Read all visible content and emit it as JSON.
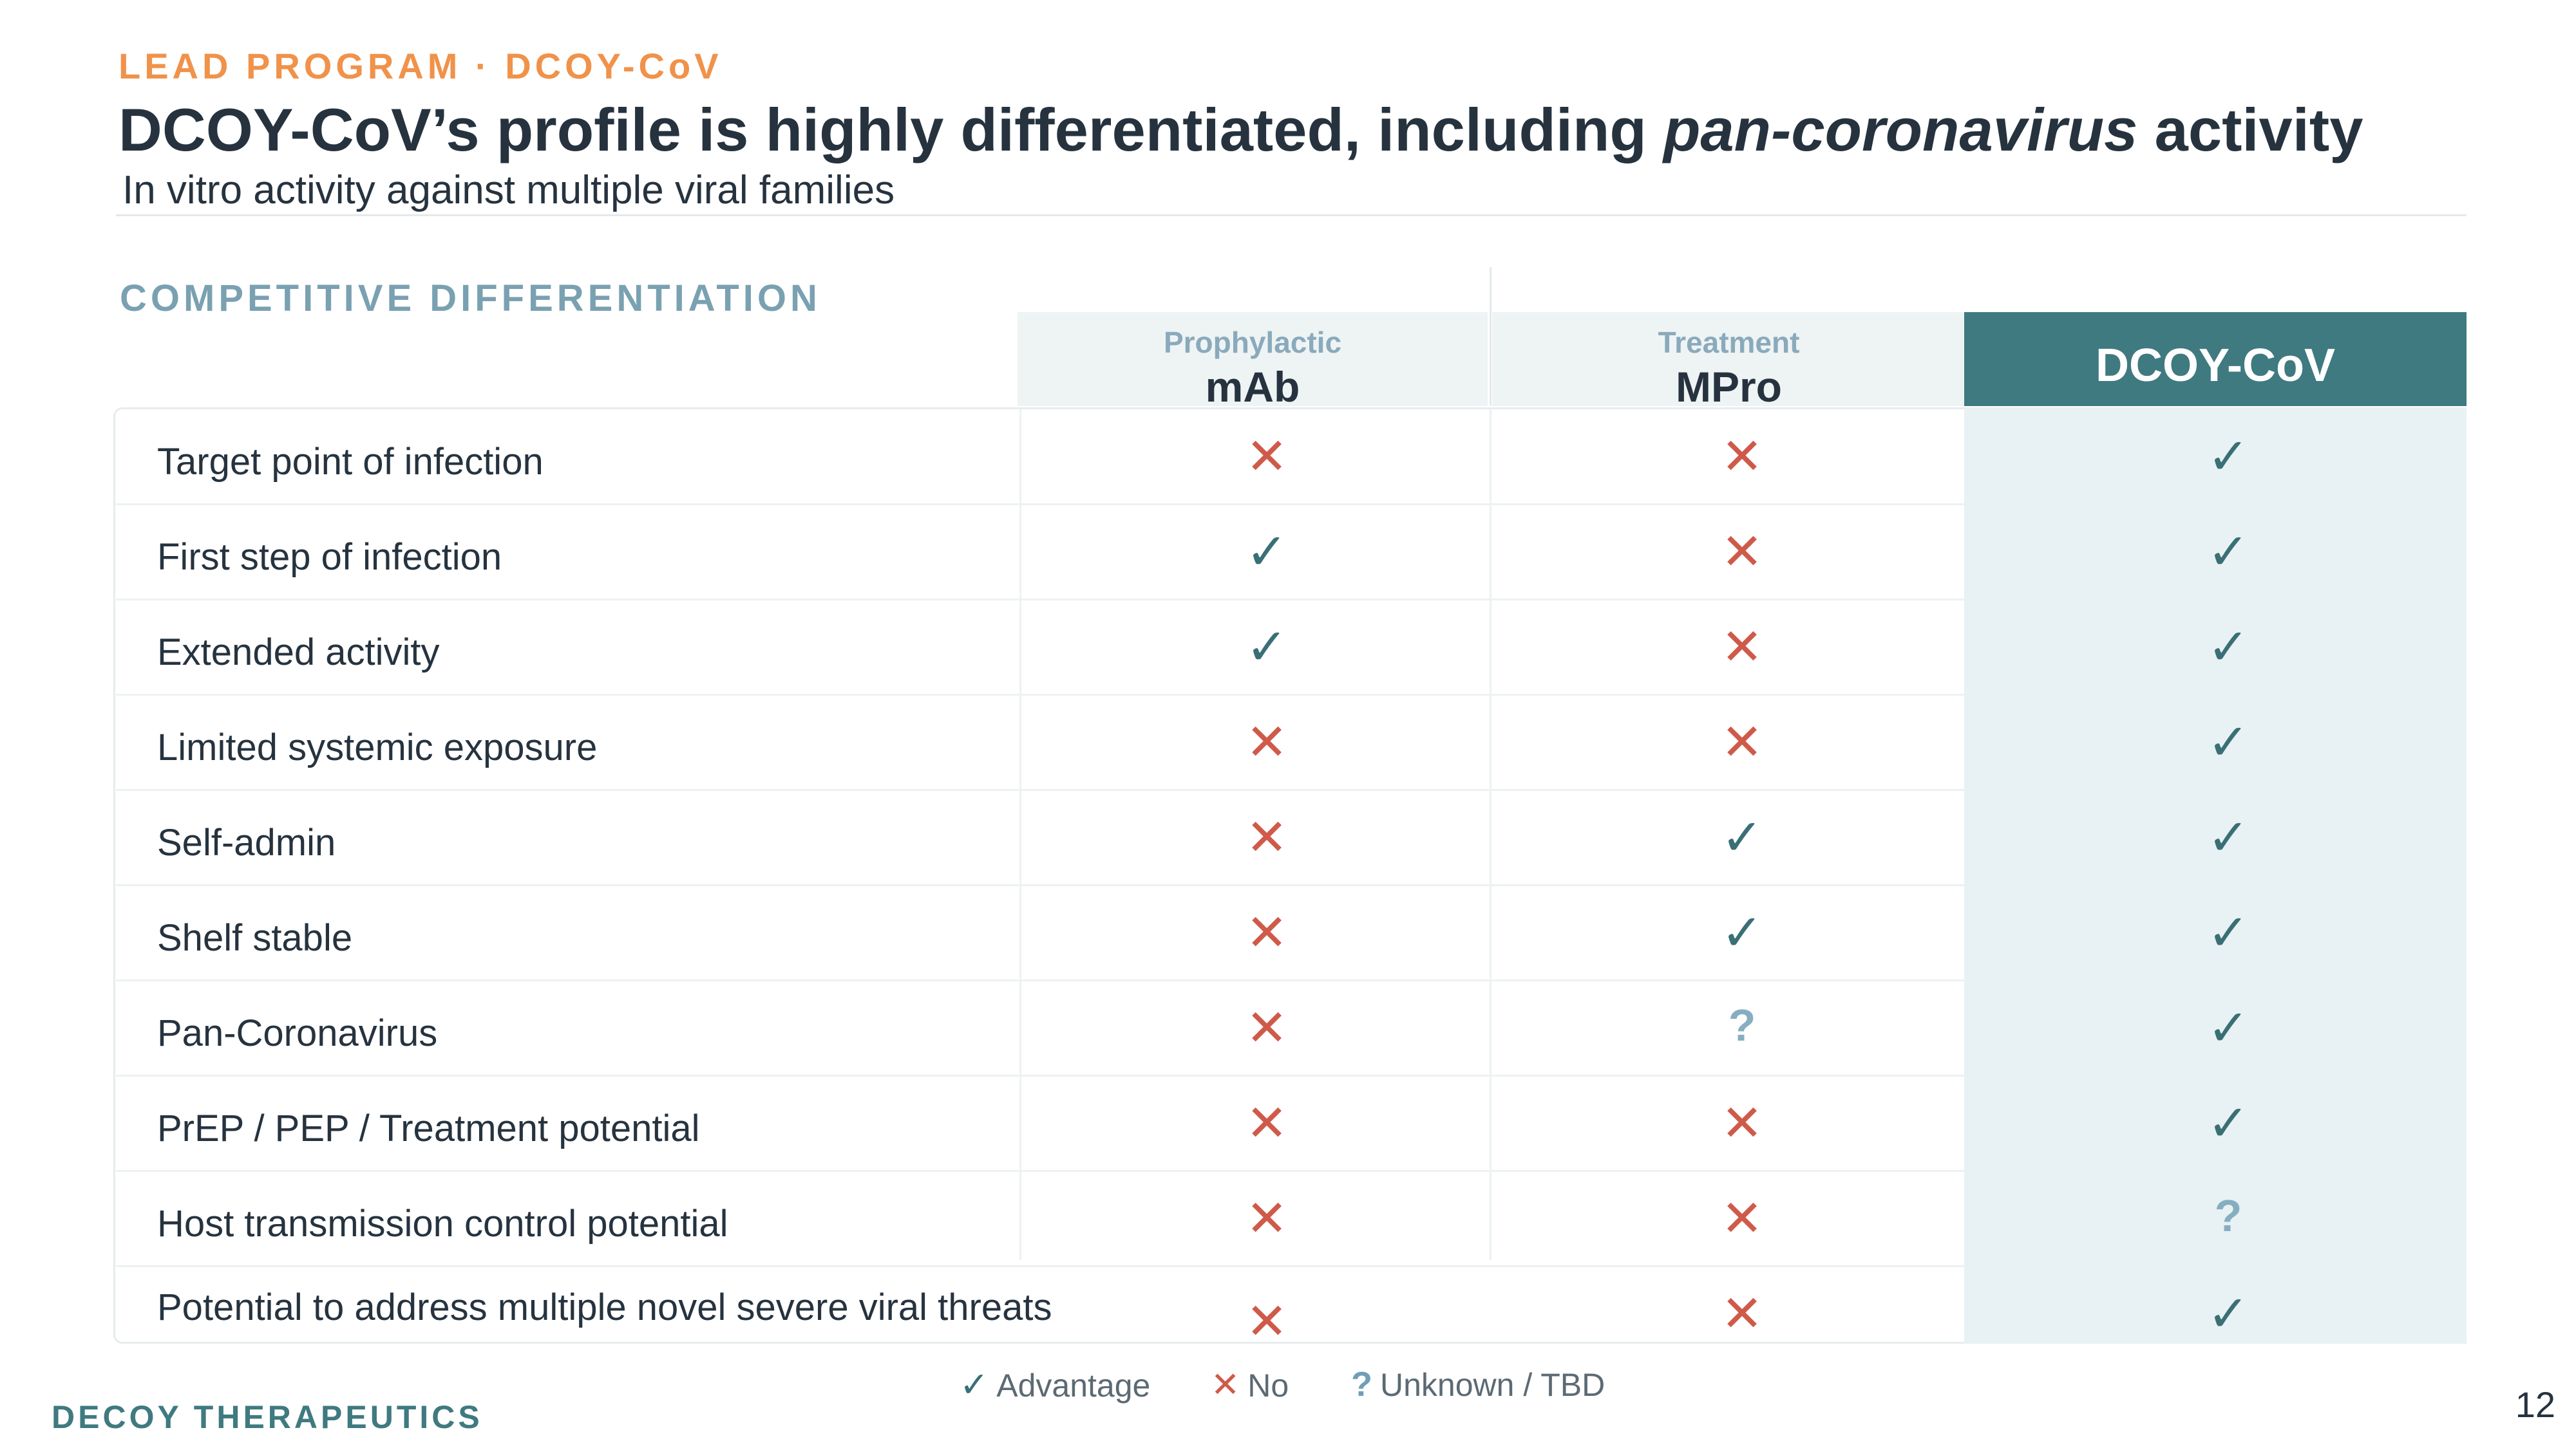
{
  "header": {
    "eyebrow": "LEAD PROGRAM · DCOY-CoV",
    "title_pre": "DCOY-CoV’s profile is highly differentiated, including ",
    "title_em": "pan-coronavirus",
    "title_post": " activity",
    "subtitle": "In vitro activity against multiple viral families"
  },
  "table": {
    "section_label": "COMPETITIVE DIFFERENTIATION",
    "columns": [
      {
        "sub": "Prophylactic",
        "name": "mAb"
      },
      {
        "sub": "Treatment",
        "name": "MPro"
      },
      {
        "sub": "",
        "name": "DCOY-CoV"
      }
    ],
    "rows": [
      {
        "label": "Target point of infection",
        "values": [
          "no",
          "no",
          "check"
        ]
      },
      {
        "label": "First step of infection",
        "values": [
          "check",
          "no",
          "check"
        ]
      },
      {
        "label": "Extended activity",
        "values": [
          "check",
          "no",
          "check"
        ]
      },
      {
        "label": "Limited systemic exposure",
        "values": [
          "no",
          "no",
          "check"
        ]
      },
      {
        "label": "Self-admin",
        "values": [
          "no",
          "check",
          "check"
        ]
      },
      {
        "label": "Shelf stable",
        "values": [
          "no",
          "check",
          "check"
        ]
      },
      {
        "label": "Pan-Coronavirus",
        "values": [
          "no",
          "unknown",
          "check"
        ]
      },
      {
        "label": "PrEP / PEP / Treatment potential",
        "values": [
          "no",
          "no",
          "check"
        ]
      },
      {
        "label": "Host transmission control potential",
        "values": [
          "no",
          "no",
          "unknown"
        ]
      },
      {
        "label": "Potential to address multiple novel severe viral threats",
        "values": [
          "no",
          "no",
          "check"
        ]
      }
    ]
  },
  "symbols": {
    "check": "✓",
    "no": "✕",
    "unknown": "?"
  },
  "legend": {
    "advantage": "Advantage",
    "no": "No",
    "unknown": "Unknown / TBD"
  },
  "footer": {
    "company": "DECOY THERAPEUTICS",
    "page_number": "12"
  },
  "colors": {
    "accent_orange": "#f0924a",
    "teal": "#3f7a80",
    "check": "#3a6f76",
    "no": "#cf5a4a",
    "unknown": "#86aec0"
  }
}
